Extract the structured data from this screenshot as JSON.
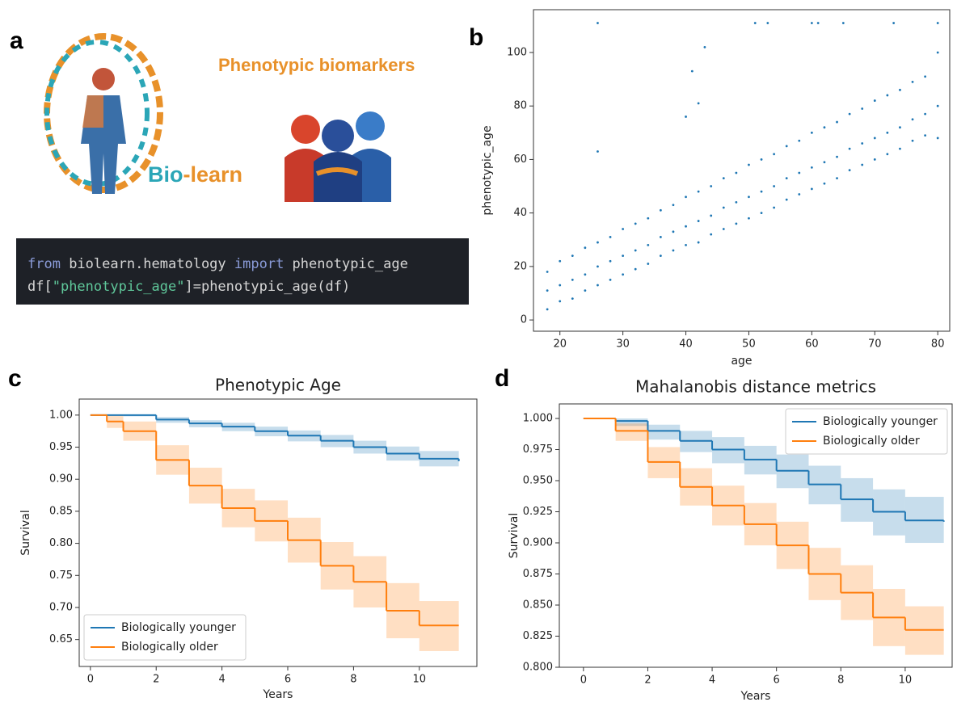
{
  "panel_labels": [
    "a",
    "b",
    "c",
    "d"
  ],
  "panel_a": {
    "title": "Phenotypic biomarkers",
    "logo": [
      "Bio",
      "-",
      "learn"
    ],
    "code": [
      [
        "from",
        " biolearn.hematology ",
        "import",
        " phenotypic_age"
      ],
      [
        "df[",
        "\"phenotypic_age\"",
        "]=phenotypic_age(df)"
      ]
    ]
  },
  "chart_data": [
    {
      "type": "scatter",
      "xlabel": "age",
      "ylabel": "phenotypic_age",
      "color": "#1f77b4",
      "xlim": [
        15.8,
        81.9
      ],
      "ylim": [
        -4.2,
        116
      ],
      "xticks": [
        20,
        30,
        40,
        50,
        60,
        70,
        80
      ],
      "yticks": [
        0,
        20,
        40,
        60,
        80,
        100
      ],
      "x": [
        18,
        18,
        18,
        20,
        20,
        20,
        22,
        22,
        22,
        24,
        24,
        24,
        26,
        26,
        26,
        28,
        28,
        28,
        30,
        30,
        30,
        32,
        32,
        32,
        34,
        34,
        34,
        36,
        36,
        36,
        38,
        38,
        38,
        40,
        40,
        40,
        42,
        42,
        42,
        44,
        44,
        44,
        46,
        46,
        46,
        48,
        48,
        48,
        50,
        50,
        50,
        52,
        52,
        52,
        54,
        54,
        54,
        56,
        56,
        56,
        58,
        58,
        58,
        60,
        60,
        60,
        62,
        62,
        62,
        64,
        64,
        64,
        66,
        66,
        66,
        68,
        68,
        68,
        70,
        70,
        70,
        72,
        72,
        72,
        74,
        74,
        74,
        76,
        76,
        76,
        78,
        78,
        78,
        80,
        80,
        80,
        26,
        26,
        40,
        41,
        42,
        43,
        51,
        53,
        60,
        61,
        65,
        73,
        80
      ],
      "values": [
        4,
        11,
        18,
        7,
        13,
        22,
        8,
        15,
        24,
        11,
        17,
        27,
        13,
        20,
        29,
        15,
        22,
        31,
        17,
        24,
        34,
        19,
        26,
        36,
        21,
        28,
        38,
        24,
        31,
        41,
        26,
        33,
        43,
        28,
        35,
        46,
        29,
        37,
        48,
        32,
        39,
        50,
        34,
        42,
        53,
        36,
        44,
        55,
        38,
        46,
        58,
        40,
        48,
        60,
        42,
        50,
        62,
        45,
        53,
        65,
        47,
        55,
        67,
        49,
        57,
        70,
        51,
        59,
        72,
        53,
        61,
        74,
        56,
        64,
        77,
        58,
        66,
        79,
        60,
        68,
        82,
        62,
        70,
        84,
        64,
        72,
        86,
        67,
        75,
        89,
        69,
        77,
        91,
        68,
        80,
        100,
        111,
        63,
        76,
        93,
        81,
        102,
        111,
        111,
        111,
        111,
        111,
        111,
        111
      ]
    },
    {
      "type": "line",
      "title": "Phenotypic Age",
      "xlabel": "Years",
      "ylabel": "Survival",
      "legend": "lower left",
      "xlim": [
        -0.34,
        11.75
      ],
      "ylim": [
        0.608,
        1.025
      ],
      "xticks": [
        0,
        2,
        4,
        6,
        8,
        10
      ],
      "yticks": [
        {
          "value": 1.0,
          "label": "1.00"
        },
        0.95,
        {
          "value": 0.9,
          "label": "0.90"
        },
        0.85,
        {
          "value": 0.8,
          "label": "0.80"
        },
        0.75,
        {
          "value": 0.7,
          "label": "0.70"
        },
        0.65
      ],
      "x": [
        0,
        0.5,
        1,
        2,
        3,
        4,
        5,
        6,
        7,
        8,
        9,
        10,
        11.2
      ],
      "series": [
        {
          "name": "Biologically younger",
          "color": "#1f77b4",
          "values": [
            1.0,
            1.0,
            1.0,
            0.993,
            0.987,
            0.982,
            0.975,
            0.968,
            0.96,
            0.95,
            0.94,
            0.932,
            0.928
          ],
          "upper": [
            1.0,
            1.0,
            1.0,
            0.997,
            0.992,
            0.988,
            0.982,
            0.976,
            0.969,
            0.96,
            0.951,
            0.944,
            0.94
          ],
          "lower": [
            1.0,
            1.0,
            0.998,
            0.988,
            0.981,
            0.975,
            0.967,
            0.959,
            0.95,
            0.94,
            0.929,
            0.92,
            0.916
          ]
        },
        {
          "name": "Biologically older",
          "color": "#ff7f0e",
          "values": [
            1.0,
            0.99,
            0.975,
            0.93,
            0.89,
            0.855,
            0.835,
            0.805,
            0.765,
            0.74,
            0.695,
            0.672,
            0.672
          ],
          "upper": [
            1.0,
            1.0,
            0.99,
            0.953,
            0.918,
            0.885,
            0.867,
            0.84,
            0.802,
            0.78,
            0.738,
            0.71,
            0.707
          ],
          "lower": [
            1.0,
            0.98,
            0.96,
            0.907,
            0.862,
            0.825,
            0.803,
            0.77,
            0.728,
            0.7,
            0.652,
            0.632,
            0.63
          ]
        }
      ]
    },
    {
      "type": "line",
      "title": "Mahalanobis distance metrics",
      "xlabel": "Years",
      "ylabel": "Survival",
      "legend": "upper right",
      "xlim": [
        -0.75,
        11.46
      ],
      "ylim": [
        0.8,
        1.0117
      ],
      "xticks": [
        0,
        2,
        4,
        6,
        8,
        10
      ],
      "yticks": [
        {
          "value": 1.0,
          "label": "1.000"
        },
        0.975,
        {
          "value": 0.95,
          "label": "0.950"
        },
        0.925,
        {
          "value": 0.9,
          "label": "0.900"
        },
        0.875,
        {
          "value": 0.85,
          "label": "0.850"
        },
        0.825,
        {
          "value": 0.8,
          "label": "0.800"
        }
      ],
      "x": [
        0,
        1,
        2,
        3,
        4,
        5,
        6,
        7,
        8,
        9,
        10,
        11.2
      ],
      "series": [
        {
          "name": "Biologically younger",
          "color": "#1f77b4",
          "values": [
            1.0,
            0.998,
            0.99,
            0.982,
            0.975,
            0.967,
            0.958,
            0.947,
            0.935,
            0.925,
            0.918,
            0.917
          ],
          "upper": [
            1.0,
            1.0,
            0.995,
            0.99,
            0.985,
            0.978,
            0.971,
            0.962,
            0.952,
            0.943,
            0.937,
            0.932
          ],
          "lower": [
            1.0,
            0.994,
            0.983,
            0.973,
            0.964,
            0.955,
            0.944,
            0.931,
            0.917,
            0.906,
            0.9,
            0.901
          ]
        },
        {
          "name": "Biologically older",
          "color": "#ff7f0e",
          "values": [
            1.0,
            0.99,
            0.965,
            0.945,
            0.93,
            0.915,
            0.898,
            0.875,
            0.86,
            0.84,
            0.83,
            0.83
          ],
          "upper": [
            1.0,
            0.996,
            0.977,
            0.96,
            0.946,
            0.932,
            0.917,
            0.896,
            0.882,
            0.863,
            0.849,
            0.849
          ],
          "lower": [
            1.0,
            0.982,
            0.952,
            0.93,
            0.914,
            0.898,
            0.879,
            0.854,
            0.838,
            0.817,
            0.81,
            0.809
          ]
        }
      ]
    }
  ]
}
